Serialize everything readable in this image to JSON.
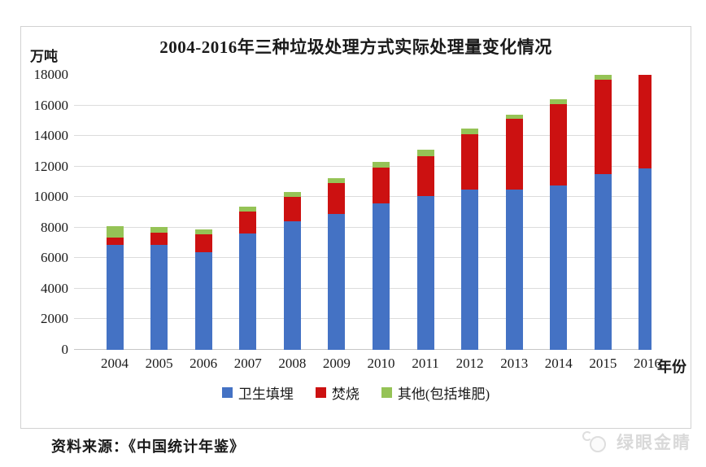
{
  "chart": {
    "unit_label": "万吨",
    "xaxis_suffix": "年份",
    "source_text": "资料来源：《中国统计年鉴》",
    "watermark_text": "绿眼金睛"
  },
  "chart_data": {
    "type": "bar",
    "stacked": true,
    "title": "2004-2016年三种垃圾处理方式实际处理量变化情况",
    "ylabel": "万吨",
    "xlabel": "年份",
    "categories": [
      "2004",
      "2005",
      "2006",
      "2007",
      "2008",
      "2009",
      "2010",
      "2011",
      "2012",
      "2013",
      "2014",
      "2015",
      "2016"
    ],
    "series": [
      {
        "name": "卫生填埋",
        "color": "#4472C4",
        "values": [
          6889,
          6858,
          6408,
          7633,
          8424,
          8899,
          9598,
          10064,
          10513,
          10493,
          10744,
          11483,
          11866
        ]
      },
      {
        "name": "焚烧",
        "color": "#CC1111",
        "values": [
          450,
          791,
          1138,
          1435,
          1570,
          2022,
          2317,
          2599,
          3584,
          4634,
          5330,
          6176,
          7378
        ]
      },
      {
        "name": "其他(包括堆肥)",
        "color": "#95C356",
        "values": [
          750,
          402,
          326,
          327,
          313,
          312,
          403,
          427,
          393,
          268,
          320,
          354,
          429
        ]
      }
    ],
    "ylim": [
      0,
      18000
    ],
    "yticks": [
      0,
      2000,
      4000,
      6000,
      8000,
      10000,
      12000,
      14000,
      16000,
      18000
    ],
    "grid": true,
    "legend_position": "bottom",
    "bars_clipped_at_ymax": true,
    "colors": {
      "gridline": "#dcdcdc",
      "baseline": "#c6c6c6",
      "box_border": "#d2d2d2",
      "watermark": "#d9d9d9"
    }
  }
}
